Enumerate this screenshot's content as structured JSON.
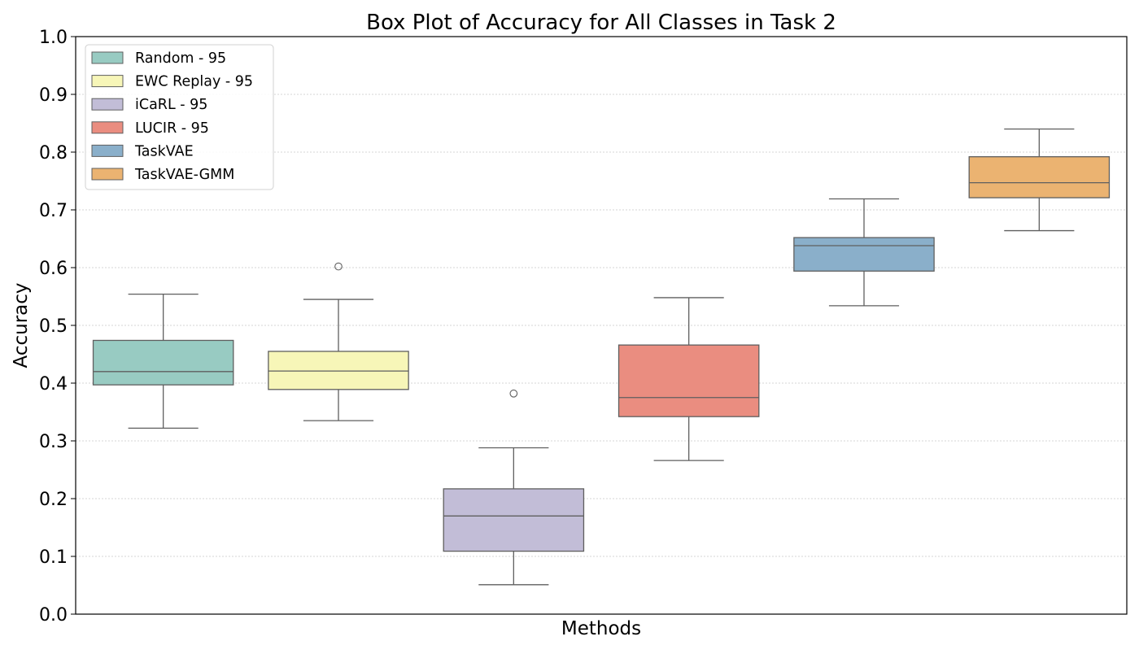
{
  "chart_data": {
    "type": "box",
    "title": "Box Plot of Accuracy for All Classes in Task 2",
    "xlabel": "Methods",
    "ylabel": "Accuracy",
    "ylim": [
      0.0,
      1.0
    ],
    "yticks": [
      "0.0",
      "0.1",
      "0.2",
      "0.3",
      "0.4",
      "0.5",
      "0.6",
      "0.7",
      "0.8",
      "0.9",
      "1.0"
    ],
    "grid": "horizontal dotted",
    "legend_position": "top-left",
    "series": [
      {
        "name": "Random - 95",
        "color": "#98CBC2",
        "whisker_low": 0.322,
        "q1": 0.397,
        "median": 0.42,
        "q3": 0.474,
        "whisker_high": 0.554,
        "outliers": []
      },
      {
        "name": "EWC Replay - 95",
        "color": "#F7F6B8",
        "whisker_low": 0.335,
        "q1": 0.389,
        "median": 0.421,
        "q3": 0.455,
        "whisker_high": 0.545,
        "outliers": [
          0.602
        ]
      },
      {
        "name": "iCaRL - 95",
        "color": "#C2BDD7",
        "whisker_low": 0.051,
        "q1": 0.109,
        "median": 0.17,
        "q3": 0.217,
        "whisker_high": 0.288,
        "outliers": [
          0.382
        ]
      },
      {
        "name": "LUCIR - 95",
        "color": "#EA8D80",
        "whisker_low": 0.266,
        "q1": 0.342,
        "median": 0.375,
        "q3": 0.466,
        "whisker_high": 0.548,
        "outliers": []
      },
      {
        "name": "TaskVAE",
        "color": "#8AAFCA",
        "whisker_low": 0.534,
        "q1": 0.594,
        "median": 0.638,
        "q3": 0.652,
        "whisker_high": 0.719,
        "outliers": []
      },
      {
        "name": "TaskVAE-GMM",
        "color": "#EBB371",
        "whisker_low": 0.664,
        "q1": 0.721,
        "median": 0.747,
        "q3": 0.792,
        "whisker_high": 0.84,
        "outliers": []
      }
    ]
  }
}
